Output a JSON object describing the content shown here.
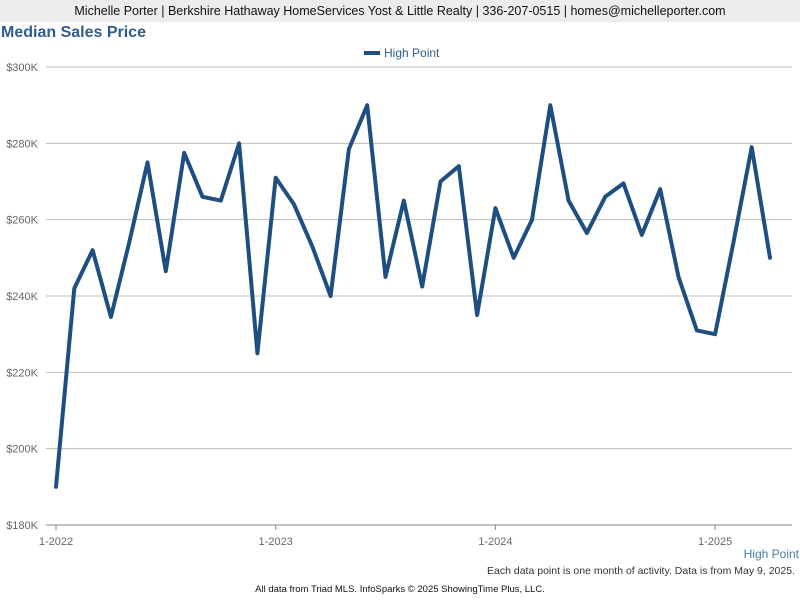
{
  "header": {
    "text": "Michelle Porter | Berkshire Hathaway HomeServices Yost & Little Realty | 336-207-0515 | homes@michelleporter.com"
  },
  "footer": {
    "note": "Each data point is one month of activity. Data is from May 9, 2025.",
    "source": "All data from Triad MLS. InfoSparks © 2025 ShowingTime Plus, LLC."
  },
  "colors": {
    "line": "#1f4f80",
    "title": "#2d5d8a",
    "grid": "#bdbdbd"
  },
  "chart_data": {
    "type": "line",
    "title": "Median Sales Price",
    "legend_position": "top-center",
    "grid": true,
    "series_label": "High Point",
    "ylim": [
      180000,
      300000
    ],
    "y_ticks": [
      {
        "value": 180000,
        "label": "$180K"
      },
      {
        "value": 200000,
        "label": "$200K"
      },
      {
        "value": 220000,
        "label": "$220K"
      },
      {
        "value": 240000,
        "label": "$240K"
      },
      {
        "value": 260000,
        "label": "$260K"
      },
      {
        "value": 280000,
        "label": "$280K"
      },
      {
        "value": 300000,
        "label": "$300K"
      }
    ],
    "x_range": [
      "2022-01",
      "2025-04"
    ],
    "x_ticks": [
      {
        "value": "2022-01",
        "label": "1-2022"
      },
      {
        "value": "2023-01",
        "label": "1-2023"
      },
      {
        "value": "2024-01",
        "label": "1-2024"
      },
      {
        "value": "2025-01",
        "label": "1-2025"
      }
    ],
    "series": [
      {
        "name": "High Point",
        "x": [
          "2022-01",
          "2022-02",
          "2022-03",
          "2022-04",
          "2022-05",
          "2022-06",
          "2022-07",
          "2022-08",
          "2022-09",
          "2022-10",
          "2022-11",
          "2022-12",
          "2023-01",
          "2023-02",
          "2023-03",
          "2023-04",
          "2023-05",
          "2023-06",
          "2023-07",
          "2023-08",
          "2023-09",
          "2023-10",
          "2023-11",
          "2023-12",
          "2024-01",
          "2024-02",
          "2024-03",
          "2024-04",
          "2024-05",
          "2024-06",
          "2024-07",
          "2024-08",
          "2024-09",
          "2024-10",
          "2024-11",
          "2024-12",
          "2025-01",
          "2025-02",
          "2025-03",
          "2025-04"
        ],
        "values": [
          190000,
          242000,
          252000,
          234500,
          254000,
          275000,
          246500,
          277500,
          266000,
          265000,
          280000,
          225000,
          271000,
          264000,
          253000,
          240000,
          278500,
          290000,
          245000,
          265000,
          242500,
          270000,
          274000,
          235000,
          263000,
          250000,
          260000,
          290000,
          265000,
          256500,
          266000,
          269500,
          256000,
          268000,
          245000,
          231000,
          230000,
          254000,
          279000,
          250000
        ]
      }
    ]
  }
}
